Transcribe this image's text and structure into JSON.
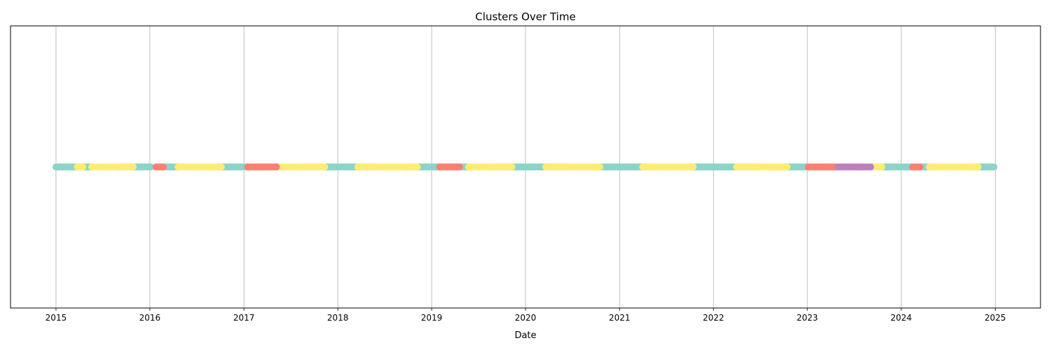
{
  "chart_data": {
    "type": "scatter",
    "title": "Clusters Over Time",
    "xlabel": "Date",
    "ylabel": "",
    "xlim": [
      "2014-07-08",
      "2025-06-26"
    ],
    "ylim": [
      -1,
      1
    ],
    "grid": {
      "x": true,
      "y": false
    },
    "x_ticks": [
      "2015",
      "2016",
      "2017",
      "2018",
      "2019",
      "2020",
      "2021",
      "2022",
      "2023",
      "2024",
      "2025"
    ],
    "y_ticks": [],
    "legend": "none",
    "colors": {
      "teal": "#8dd3c7",
      "yellow": "#ffed6f",
      "salmon": "#fb8072",
      "purple": "#bc80bd",
      "grid": "#b0b0b0",
      "axis": "#000000"
    },
    "series": [
      {
        "color": "teal",
        "y": 0,
        "segments": [
          [
            "2015-01-01",
            "2015-05-20"
          ],
          [
            "2015-08-25",
            "2016-01-10"
          ],
          [
            "2016-02-10",
            "2016-05-10"
          ],
          [
            "2016-09-10",
            "2017-01-15"
          ],
          [
            "2017-05-10",
            "2017-06-01"
          ],
          [
            "2017-09-01",
            "2018-06-01"
          ],
          [
            "2018-09-15",
            "2019-02-01"
          ],
          [
            "2019-04-20",
            "2019-06-01"
          ],
          [
            "2019-08-20",
            "2020-06-15"
          ],
          [
            "2020-10-15",
            "2021-05-20"
          ],
          [
            "2021-09-15",
            "2022-07-01"
          ],
          [
            "2022-10-01",
            "2023-01-05"
          ],
          [
            "2023-09-10",
            "2024-02-15"
          ],
          [
            "2024-03-20",
            "2024-05-10"
          ],
          [
            "2024-09-20",
            "2024-12-31"
          ]
        ]
      },
      {
        "color": "yellow",
        "y": 0,
        "segments": [
          [
            "2015-03-25",
            "2015-04-15"
          ],
          [
            "2015-05-20",
            "2015-11-01"
          ],
          [
            "2016-04-20",
            "2016-10-10"
          ],
          [
            "2017-05-20",
            "2017-11-15"
          ],
          [
            "2018-03-20",
            "2018-11-10"
          ],
          [
            "2019-05-25",
            "2019-11-10"
          ],
          [
            "2020-03-20",
            "2020-10-20"
          ],
          [
            "2021-04-01",
            "2021-10-15"
          ],
          [
            "2022-04-01",
            "2022-10-20"
          ],
          [
            "2023-09-20",
            "2023-10-20"
          ],
          [
            "2024-04-20",
            "2024-11-01"
          ]
        ]
      },
      {
        "color": "salmon",
        "y": 0,
        "segments": [
          [
            "2016-01-25",
            "2016-02-25"
          ],
          [
            "2017-01-15",
            "2017-05-10"
          ],
          [
            "2019-02-01",
            "2019-04-20"
          ],
          [
            "2023-01-05",
            "2023-05-01"
          ],
          [
            "2024-02-15",
            "2024-03-20"
          ]
        ]
      },
      {
        "color": "purple",
        "y": 0,
        "segments": [
          [
            "2023-05-01",
            "2023-09-10"
          ]
        ]
      }
    ]
  }
}
